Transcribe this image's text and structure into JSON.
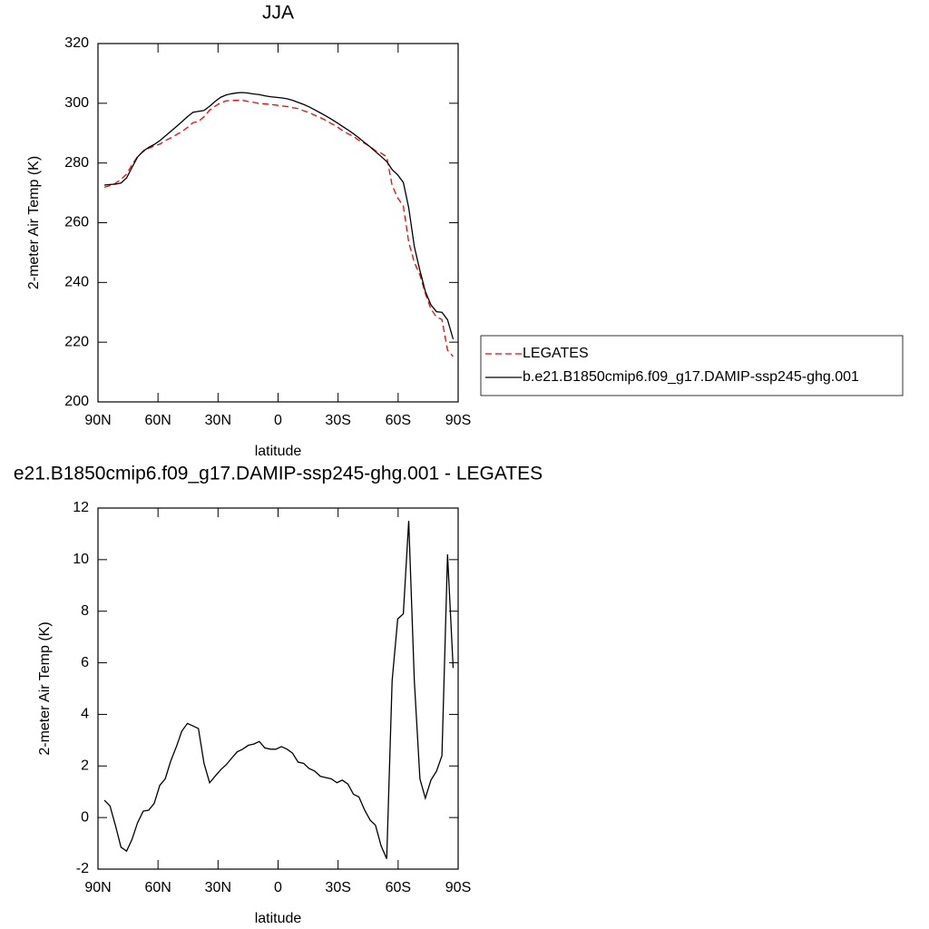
{
  "chart_data": [
    {
      "type": "line",
      "title": "JJA",
      "xlabel": "latitude",
      "ylabel": "2-meter Air Temp (K)",
      "x": [
        86.8,
        84.0,
        81.3,
        78.5,
        75.7,
        73.0,
        70.2,
        67.4,
        64.7,
        61.9,
        59.1,
        56.4,
        53.6,
        50.8,
        48.1,
        45.3,
        42.5,
        39.8,
        37.0,
        34.2,
        31.5,
        28.7,
        25.9,
        23.2,
        20.4,
        17.7,
        14.9,
        12.1,
        9.4,
        6.6,
        3.8,
        1.1,
        -1.7,
        -4.5,
        -7.2,
        -10.0,
        -12.8,
        -15.5,
        -18.3,
        -21.1,
        -23.8,
        -26.6,
        -29.4,
        -32.1,
        -34.9,
        -37.7,
        -40.4,
        -43.2,
        -46.0,
        -48.7,
        -51.5,
        -54.3,
        -57.0,
        -59.8,
        -62.6,
        -65.3,
        -68.1,
        -70.9,
        -73.6,
        -76.4,
        -79.2,
        -81.9,
        -84.7,
        -87.5
      ],
      "series": [
        {
          "name": "LEGATES",
          "color": "#ff0000",
          "dashed": true,
          "values": [
            271.9,
            272.4,
            273.2,
            274.5,
            276.3,
            279.4,
            282.2,
            283.8,
            284.9,
            285.7,
            286.3,
            287.5,
            288.4,
            289.5,
            290.5,
            291.9,
            293.5,
            293.9,
            295.5,
            297.7,
            299.0,
            300.2,
            300.8,
            300.9,
            301.0,
            301.0,
            300.6,
            300.3,
            299.9,
            299.8,
            299.6,
            299.4,
            299.1,
            298.9,
            298.5,
            298.2,
            297.5,
            296.9,
            296.0,
            295.2,
            294.3,
            293.2,
            292.2,
            290.9,
            289.8,
            288.9,
            287.6,
            286.6,
            285.5,
            284.1,
            283.3,
            282.1,
            272.5,
            268.3,
            265.6,
            253.5,
            246.7,
            242.5,
            236.3,
            231.1,
            228.4,
            227.6,
            217.3,
            215.2
          ]
        },
        {
          "name": "b.e21.B1850cmip6.f09_g17.DAMIP-ssp245-ghg.001",
          "color": "#000000",
          "dashed": false,
          "values": [
            272.6,
            272.8,
            272.9,
            273.3,
            275.0,
            278.5,
            282.0,
            284.0,
            285.2,
            286.2,
            287.5,
            289.0,
            290.6,
            292.2,
            293.8,
            295.5,
            297.0,
            297.3,
            297.6,
            299.0,
            300.6,
            302.0,
            302.8,
            303.2,
            303.5,
            303.6,
            303.4,
            303.1,
            302.9,
            302.5,
            302.2,
            302.0,
            301.8,
            301.5,
            301.0,
            300.3,
            299.6,
            298.8,
            297.8,
            296.8,
            295.8,
            294.7,
            293.5,
            292.3,
            291.1,
            289.8,
            288.4,
            286.9,
            285.4,
            283.8,
            282.2,
            280.5,
            277.8,
            276.0,
            273.5,
            265.0,
            252.0,
            244.0,
            237.0,
            232.5,
            230.2,
            230.0,
            227.5,
            221.0
          ]
        }
      ],
      "xlim": [
        90,
        -90
      ],
      "xticks": [
        {
          "value": 90,
          "label": "90N"
        },
        {
          "value": 60,
          "label": "60N"
        },
        {
          "value": 30,
          "label": "30N"
        },
        0,
        {
          "value": -30,
          "label": "30S"
        },
        {
          "value": -60,
          "label": "60S"
        },
        {
          "value": -90,
          "label": "90S"
        }
      ],
      "ylim": [
        200,
        320
      ],
      "yticks": [
        200,
        220,
        240,
        260,
        280,
        300,
        320
      ],
      "legend": "right"
    },
    {
      "type": "line",
      "title": "e21.B1850cmip6.f09_g17.DAMIP-ssp245-ghg.001 - LEGATES",
      "xlabel": "latitude",
      "ylabel": "2-meter Air Temp (K)",
      "x": [
        86.8,
        84.0,
        81.3,
        78.5,
        75.7,
        73.0,
        70.2,
        67.4,
        64.7,
        61.9,
        59.1,
        56.4,
        53.6,
        50.8,
        48.1,
        45.3,
        42.5,
        39.8,
        37.0,
        34.2,
        31.5,
        28.7,
        25.9,
        23.2,
        20.4,
        17.7,
        14.9,
        12.1,
        9.4,
        6.6,
        3.8,
        1.1,
        -1.7,
        -4.5,
        -7.2,
        -10.0,
        -12.8,
        -15.5,
        -18.3,
        -21.1,
        -23.8,
        -26.6,
        -29.4,
        -32.1,
        -34.9,
        -37.7,
        -40.4,
        -43.2,
        -46.0,
        -48.7,
        -51.5,
        -54.3,
        -57.0,
        -59.8,
        -62.6,
        -65.3,
        -68.1,
        -70.9,
        -73.6,
        -76.4,
        -79.2,
        -81.9,
        -84.7,
        -87.5
      ],
      "color": "#000000",
      "values": [
        0.67,
        0.45,
        -0.3,
        -1.15,
        -1.3,
        -0.85,
        -0.2,
        0.25,
        0.28,
        0.55,
        1.25,
        1.5,
        2.2,
        2.75,
        3.35,
        3.65,
        3.55,
        3.45,
        2.1,
        1.35,
        1.6,
        1.85,
        2.05,
        2.3,
        2.55,
        2.65,
        2.8,
        2.85,
        2.95,
        2.7,
        2.65,
        2.65,
        2.75,
        2.65,
        2.5,
        2.15,
        2.1,
        1.9,
        1.8,
        1.6,
        1.55,
        1.5,
        1.35,
        1.45,
        1.3,
        0.9,
        0.8,
        0.3,
        -0.1,
        -0.3,
        -1.1,
        -1.6,
        5.3,
        7.7,
        7.9,
        11.5,
        5.3,
        1.5,
        0.75,
        1.45,
        1.8,
        2.4,
        10.2,
        5.8
      ],
      "xlim": [
        90,
        -90
      ],
      "xticks": [
        {
          "value": 90,
          "label": "90N"
        },
        {
          "value": 60,
          "label": "60N"
        },
        {
          "value": 30,
          "label": "30N"
        },
        0,
        {
          "value": -30,
          "label": "30S"
        },
        {
          "value": -60,
          "label": "60S"
        },
        {
          "value": -90,
          "label": "90S"
        }
      ],
      "ylim": [
        -2,
        12
      ],
      "yticks": [
        -2,
        0,
        2,
        4,
        6,
        8,
        10,
        12
      ]
    }
  ]
}
